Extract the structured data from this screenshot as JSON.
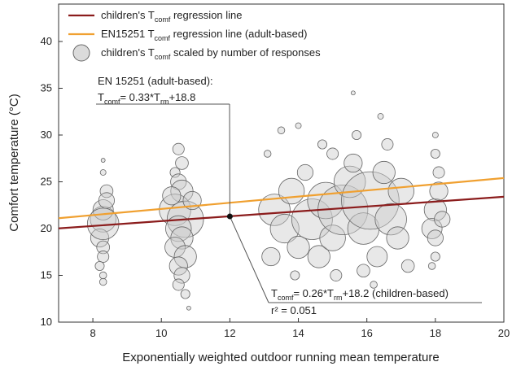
{
  "chart_data": {
    "type": "scatter",
    "xlabel": "Exponentially weighted outdoor running mean temperature",
    "ylabel": "Comfort temperature (°C)",
    "xlim": [
      7,
      20
    ],
    "xticks": [
      8,
      10,
      12,
      14,
      16,
      18,
      20
    ],
    "ylim": [
      10,
      44
    ],
    "yticks": [
      10,
      15,
      20,
      25,
      30,
      35,
      40
    ],
    "series": [
      {
        "kind": "line",
        "name": [
          "children's T",
          "comf",
          " regression line"
        ],
        "color": "#8b1c1c",
        "x": [
          7,
          20
        ],
        "values": [
          20.02,
          23.4
        ]
      },
      {
        "kind": "line",
        "name": [
          "EN15251 T",
          "comf",
          " regression line (adult-based)"
        ],
        "color": "#f0a030",
        "x": [
          7,
          20
        ],
        "values": [
          21.11,
          25.4
        ]
      },
      {
        "kind": "bubble",
        "name": [
          "children's T",
          "comf",
          " scaled by number of responses"
        ],
        "color": "#cccccc",
        "x": [
          8.3,
          8.3,
          8.2,
          8.4,
          8.3,
          8.3,
          8.2,
          8.3,
          8.3,
          8.3,
          8.3,
          8.4,
          8.3,
          10.5,
          10.6,
          10.4,
          10.5,
          10.6,
          10.4,
          10.7,
          10.5,
          10.6,
          10.4,
          10.7,
          10.5,
          10.6,
          10.5,
          10.7,
          10.8,
          10.9,
          10.3,
          13.3,
          13.6,
          13.8,
          14,
          14.2,
          14.4,
          14.6,
          14.8,
          15,
          15.1,
          15.3,
          15.5,
          15.6,
          15.7,
          15.6,
          15.9,
          16.1,
          16.3,
          16.5,
          16.7,
          16.9,
          17,
          13.1,
          13.5,
          13.2,
          14,
          15,
          16.6,
          17.2,
          16.4,
          14.7,
          15.9,
          13.9,
          16.2,
          18,
          18.1,
          17.9,
          18,
          18.1,
          18,
          18,
          18,
          17.9,
          18.2
        ],
        "values": [
          21,
          22,
          19,
          24,
          18,
          17,
          16,
          15,
          14.3,
          26,
          27.3,
          23,
          20.5,
          28.5,
          27,
          26,
          25,
          24,
          22,
          21,
          20,
          19,
          18,
          17,
          16,
          15,
          14,
          13,
          11.5,
          23,
          23.5,
          22,
          20,
          24,
          18,
          26,
          21,
          17,
          23,
          19,
          15,
          22,
          25,
          27,
          30,
          34.5,
          20,
          23,
          17,
          26,
          21,
          19,
          24,
          28,
          30.5,
          17,
          31,
          28,
          29,
          16,
          32,
          29,
          15.5,
          15,
          14,
          22,
          24,
          20,
          19,
          26,
          17,
          28,
          30,
          16,
          21
        ],
        "sizes": [
          40,
          25,
          20,
          10,
          10,
          8,
          5,
          3,
          3,
          2,
          1,
          15,
          60,
          8,
          10,
          6,
          15,
          30,
          60,
          80,
          40,
          30,
          25,
          30,
          20,
          15,
          8,
          5,
          1,
          20,
          20,
          60,
          50,
          40,
          30,
          15,
          100,
          30,
          80,
          40,
          8,
          150,
          60,
          20,
          5,
          1,
          60,
          200,
          25,
          30,
          60,
          30,
          40,
          3,
          3,
          20,
          2,
          8,
          8,
          10,
          2,
          5,
          10,
          5,
          3,
          30,
          20,
          25,
          15,
          8,
          5,
          5,
          2,
          3,
          15
        ]
      }
    ],
    "point": {
      "x": 12,
      "y": 21.3
    },
    "annotations": [
      {
        "lines": [
          [
            "EN 15251 (adult-based):"
          ],
          [
            "T",
            "comf",
            "= 0.33*T",
            "rm",
            "+18.8"
          ]
        ]
      },
      {
        "lines": [
          [
            "T",
            "comf",
            "= 0.26*T",
            "rm",
            "+18.2  (children-based)"
          ],
          [
            "r² = 0.051"
          ]
        ]
      }
    ]
  }
}
